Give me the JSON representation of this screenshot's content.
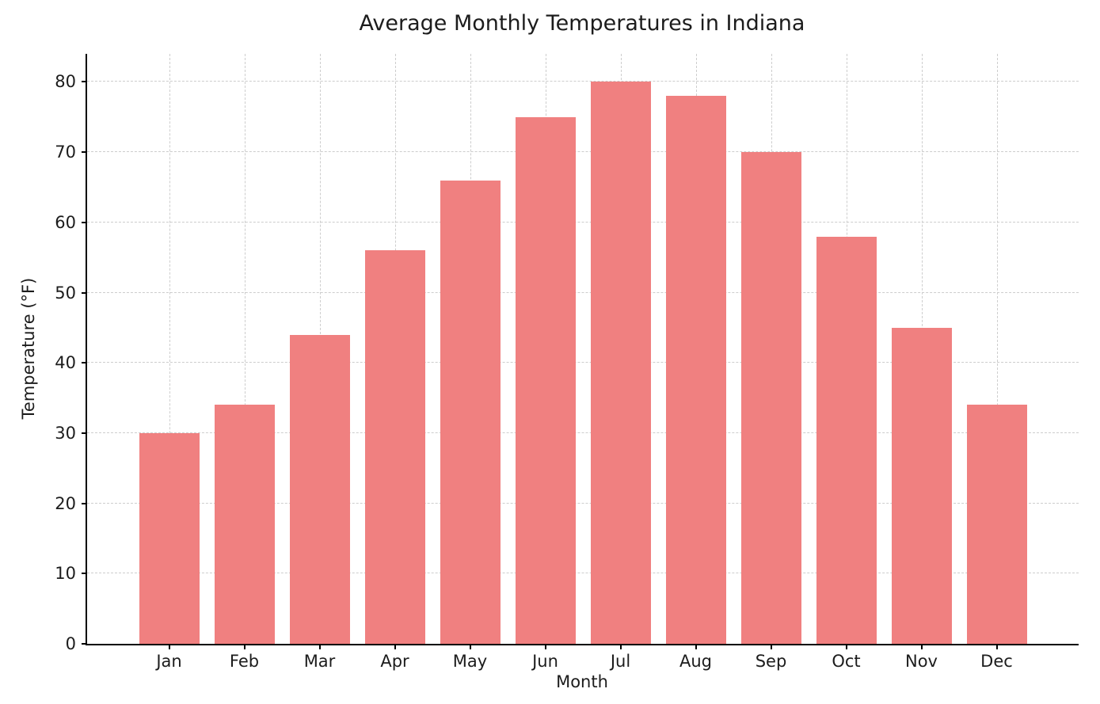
{
  "chart_data": {
    "type": "bar",
    "title": "Average Monthly Temperatures in Indiana",
    "xlabel": "Month",
    "ylabel": "Temperature (°F)",
    "categories": [
      "Jan",
      "Feb",
      "Mar",
      "Apr",
      "May",
      "Jun",
      "Jul",
      "Aug",
      "Sep",
      "Oct",
      "Nov",
      "Dec"
    ],
    "values": [
      30,
      34,
      44,
      56,
      66,
      75,
      80,
      78,
      70,
      58,
      45,
      34
    ],
    "ylim": [
      0,
      84
    ],
    "yticks": [
      0,
      10,
      20,
      30,
      40,
      50,
      60,
      70,
      80
    ],
    "bar_color": "#f08080",
    "grid": "dashed",
    "grid_color": "#cdcdcd",
    "legend_position": "none"
  }
}
